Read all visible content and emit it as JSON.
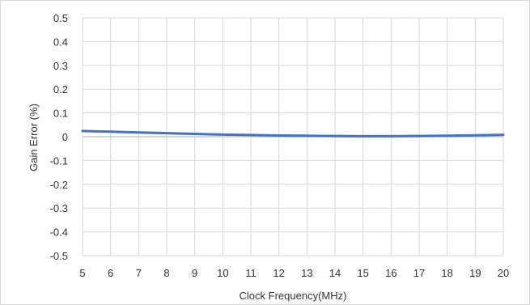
{
  "chart_data": {
    "type": "line",
    "title": "",
    "xlabel": "Clock Frequency(MHz)",
    "ylabel": "Gain Error (%)",
    "xlim": [
      5,
      20
    ],
    "ylim": [
      -0.5,
      0.5
    ],
    "x_ticks": [
      "5",
      "6",
      "7",
      "8",
      "9",
      "10",
      "11",
      "12",
      "13",
      "14",
      "15",
      "16",
      "17",
      "18",
      "19",
      "20"
    ],
    "y_ticks": [
      "0.5",
      "0.4",
      "0.3",
      "0.2",
      "0.1",
      "0",
      "-0.1",
      "-0.2",
      "-0.3",
      "-0.4",
      "-0.5"
    ],
    "grid": true,
    "legend": "none",
    "series": [
      {
        "color": "#4472c4",
        "x": [
          5,
          6,
          7,
          8,
          9,
          10,
          11,
          12,
          13,
          14,
          15,
          16,
          17,
          18,
          19,
          20
        ],
        "y": [
          0.024,
          0.021,
          0.018,
          0.015,
          0.012,
          0.009,
          0.007,
          0.005,
          0.004,
          0.003,
          0.002,
          0.002,
          0.003,
          0.004,
          0.006,
          0.008
        ]
      }
    ]
  },
  "colors": {
    "grid": "#d9d9d9",
    "zero_line": "#bfbfbf",
    "series": "#4472c4"
  }
}
